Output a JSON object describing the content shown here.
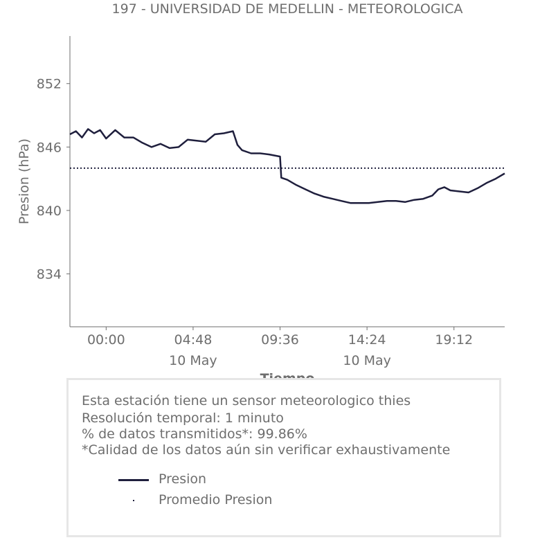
{
  "chart_data": {
    "type": "line",
    "title": "197 - UNIVERSIDAD DE MEDELLIN - METEOROLOGICA",
    "xlabel": "Tiempo",
    "ylabel": "Presion (hPa)",
    "ylim": [
      829,
      856.5
    ],
    "xlim": [
      "2024-05-09T22:00",
      "2024-05-10T22:00"
    ],
    "x_ticks": [
      {
        "x": "2024-05-10T00:00",
        "label": "00:00",
        "sublabel": ""
      },
      {
        "x": "2024-05-10T04:48",
        "label": "04:48",
        "sublabel": "10 May"
      },
      {
        "x": "2024-05-10T09:36",
        "label": "09:36",
        "sublabel": ""
      },
      {
        "x": "2024-05-10T14:24",
        "label": "14:24",
        "sublabel": "10 May"
      },
      {
        "x": "2024-05-10T19:12",
        "label": "19:12",
        "sublabel": ""
      }
    ],
    "y_ticks": [
      834,
      840,
      846,
      852
    ],
    "grid": false,
    "colors": {
      "line": "#1f1f3d",
      "mean": "#1f1f3d",
      "text": "#6e6e6e"
    },
    "series": [
      {
        "name": "Presion",
        "style": "solid",
        "points": [
          [
            "2024-05-09T22:00",
            847.2
          ],
          [
            "2024-05-09T22:20",
            847.5
          ],
          [
            "2024-05-09T22:40",
            846.9
          ],
          [
            "2024-05-09T23:00",
            847.7
          ],
          [
            "2024-05-09T23:20",
            847.3
          ],
          [
            "2024-05-09T23:40",
            847.6
          ],
          [
            "2024-05-10T00:00",
            846.8
          ],
          [
            "2024-05-10T00:30",
            847.6
          ],
          [
            "2024-05-10T01:00",
            846.9
          ],
          [
            "2024-05-10T01:30",
            846.9
          ],
          [
            "2024-05-10T02:00",
            846.4
          ],
          [
            "2024-05-10T02:30",
            846.0
          ],
          [
            "2024-05-10T03:00",
            846.3
          ],
          [
            "2024-05-10T03:30",
            845.9
          ],
          [
            "2024-05-10T04:00",
            846.0
          ],
          [
            "2024-05-10T04:30",
            846.7
          ],
          [
            "2024-05-10T05:00",
            846.6
          ],
          [
            "2024-05-10T05:30",
            846.5
          ],
          [
            "2024-05-10T06:00",
            847.2
          ],
          [
            "2024-05-10T06:30",
            847.3
          ],
          [
            "2024-05-10T07:00",
            847.5
          ],
          [
            "2024-05-10T07:15",
            846.2
          ],
          [
            "2024-05-10T07:30",
            845.7
          ],
          [
            "2024-05-10T08:00",
            845.4
          ],
          [
            "2024-05-10T08:30",
            845.4
          ],
          [
            "2024-05-10T09:00",
            845.3
          ],
          [
            "2024-05-10T09:36",
            845.1
          ],
          [
            "2024-05-10T09:40",
            843.1
          ],
          [
            "2024-05-10T10:00",
            842.9
          ],
          [
            "2024-05-10T10:30",
            842.4
          ],
          [
            "2024-05-10T11:00",
            842.0
          ],
          [
            "2024-05-10T11:30",
            841.6
          ],
          [
            "2024-05-10T12:00",
            841.3
          ],
          [
            "2024-05-10T12:30",
            841.1
          ],
          [
            "2024-05-10T13:00",
            840.9
          ],
          [
            "2024-05-10T13:30",
            840.7
          ],
          [
            "2024-05-10T14:00",
            840.7
          ],
          [
            "2024-05-10T14:30",
            840.7
          ],
          [
            "2024-05-10T15:00",
            840.8
          ],
          [
            "2024-05-10T15:30",
            840.9
          ],
          [
            "2024-05-10T16:00",
            840.9
          ],
          [
            "2024-05-10T16:30",
            840.8
          ],
          [
            "2024-05-10T17:00",
            841.0
          ],
          [
            "2024-05-10T17:30",
            841.1
          ],
          [
            "2024-05-10T18:00",
            841.4
          ],
          [
            "2024-05-10T18:20",
            842.0
          ],
          [
            "2024-05-10T18:40",
            842.2
          ],
          [
            "2024-05-10T19:00",
            841.9
          ],
          [
            "2024-05-10T19:30",
            841.8
          ],
          [
            "2024-05-10T20:00",
            841.7
          ],
          [
            "2024-05-10T20:30",
            842.1
          ],
          [
            "2024-05-10T21:00",
            842.6
          ],
          [
            "2024-05-10T21:30",
            843.0
          ],
          [
            "2024-05-10T22:00",
            843.5
          ]
        ]
      },
      {
        "name": "Promedio Presion",
        "style": "dotted",
        "value": 844.0
      }
    ]
  },
  "info": {
    "lines": [
      "Esta estación tiene un sensor meteorologico thies",
      "Resolución temporal: 1 minuto",
      "% de datos transmitidos*: 99.86%",
      "*Calidad de los datos aún sin verificar exhaustivamente"
    ],
    "legend": [
      {
        "label": "Presion",
        "marker": "line"
      },
      {
        "label": "Promedio Presion",
        "marker": "dot"
      }
    ]
  }
}
